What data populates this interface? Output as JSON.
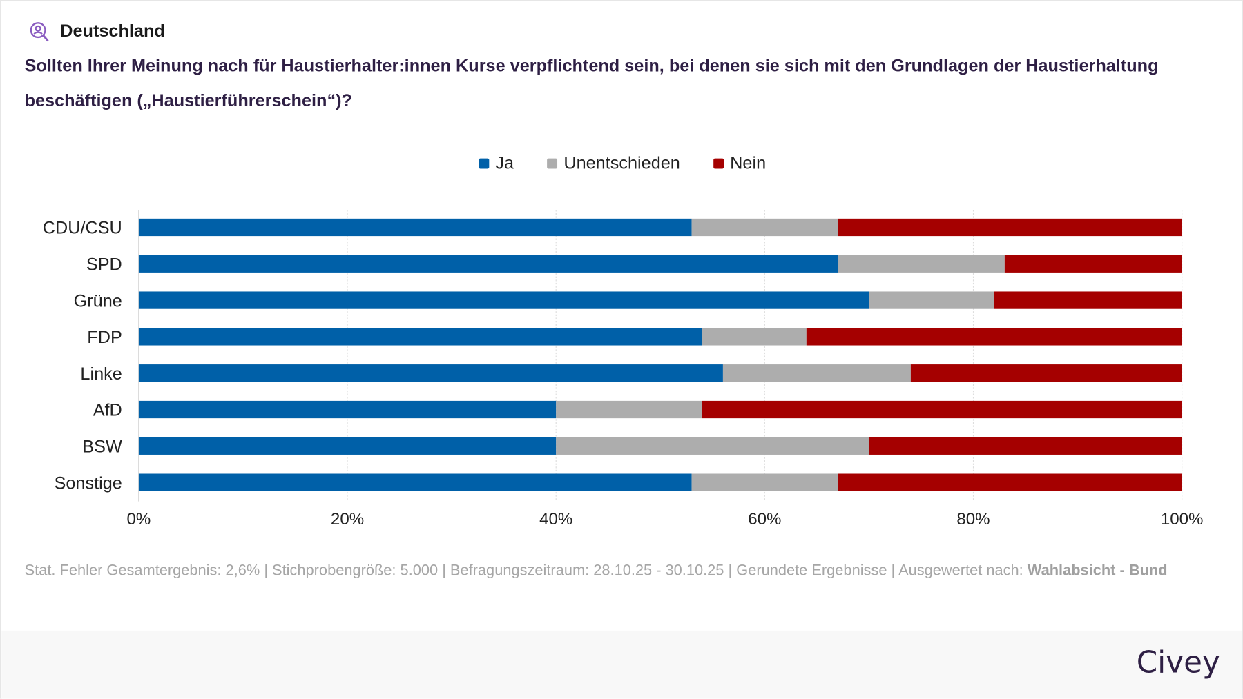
{
  "header": {
    "region": "Deutschland",
    "region_icon": "person-search-icon",
    "question": "Sollten Ihrer Meinung nach für Haustierhalter:innen Kurse verpflichtend sein, bei denen sie sich mit den Grundlagen der Haustierhaltung beschäftigen („Haustierführerschein“)?"
  },
  "chart_data": {
    "type": "bar",
    "orientation": "horizontal",
    "stacked": true,
    "categories": [
      "CDU/CSU",
      "SPD",
      "Grüne",
      "FDP",
      "Linke",
      "AfD",
      "BSW",
      "Sonstige"
    ],
    "series": [
      {
        "name": "Ja",
        "color": "#0060a8",
        "values": [
          53,
          67,
          70,
          54,
          56,
          40,
          40,
          53
        ]
      },
      {
        "name": "Unentschieden",
        "color": "#adadad",
        "values": [
          14,
          16,
          12,
          10,
          18,
          14,
          30,
          14
        ]
      },
      {
        "name": "Nein",
        "color": "#a50000",
        "values": [
          33,
          17,
          18,
          36,
          26,
          46,
          30,
          33
        ]
      }
    ],
    "xlim": [
      0,
      100
    ],
    "xticks": [
      "0%",
      "20%",
      "40%",
      "60%",
      "80%",
      "100%"
    ],
    "grid": true,
    "legend_position": "top-center"
  },
  "footnote": {
    "text": "Stat. Fehler Gesamtergebnis: 2,6% | Stichprobengröße: 5.000 | Befragungszeitraum: 28.10.25 - 30.10.25 | Gerundete Ergebnisse | Ausgewertet nach: ",
    "bold": "Wahlabsicht - Bund"
  },
  "footer": {
    "brand": "Civey"
  }
}
